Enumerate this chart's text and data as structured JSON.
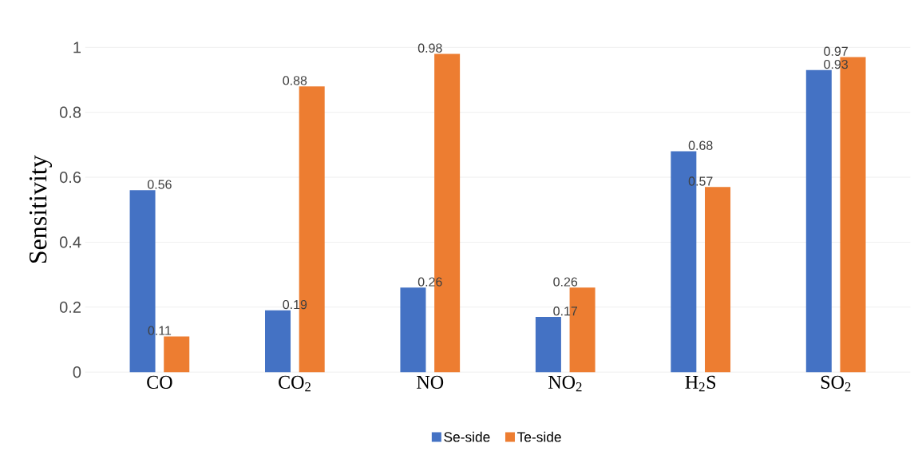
{
  "chart_data": {
    "type": "bar",
    "ylabel": "Sensitivity",
    "categories": [
      "CO",
      "CO$_{2}$",
      "NO",
      "NO$_{2}$",
      "H$_{2}$S",
      "SO$_{2}$"
    ],
    "series": [
      {
        "name": "Se-side",
        "color": "#4472c4",
        "values": [
          0.56,
          0.19,
          0.26,
          0.17,
          0.68,
          0.93
        ]
      },
      {
        "name": "Te-side",
        "color": "#ed7d31",
        "values": [
          0.11,
          0.88,
          0.98,
          0.26,
          0.57,
          0.97
        ]
      }
    ],
    "ylim": [
      0,
      1
    ],
    "yticks": [
      0,
      0.2,
      0.4,
      0.6,
      0.8,
      1
    ],
    "grid": "y",
    "legend": "bottom",
    "data_labels": true
  }
}
